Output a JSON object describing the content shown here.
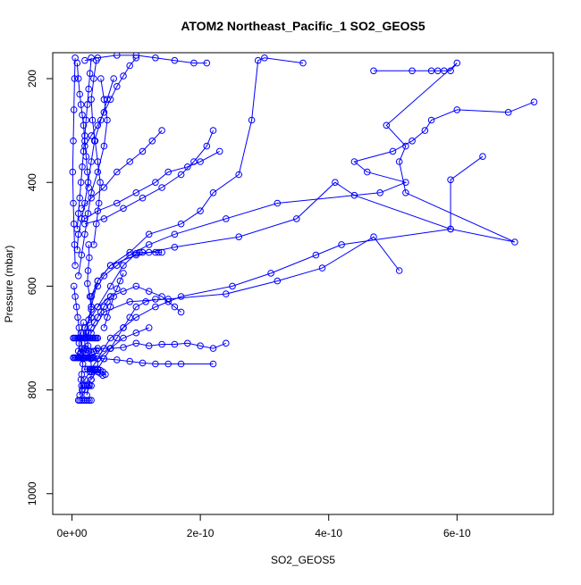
{
  "chart_data": {
    "type": "scatter",
    "title": "ATOM2 Northeast_Pacific_1 SO2_GEOS5",
    "xlabel": "SO2_GEOS5",
    "ylabel": "Pressure (mbar)",
    "xlim": [
      -3e-11,
      7.5e-10
    ],
    "ylim": [
      1040,
      150
    ],
    "y_reversed": true,
    "x_ticks": [
      0,
      2e-10,
      4e-10,
      6e-10
    ],
    "x_tick_labels": [
      "0e+00",
      "2e-10",
      "4e-10",
      "6e-10"
    ],
    "y_ticks": [
      200,
      400,
      600,
      800,
      1000
    ],
    "y_tick_labels": [
      "200",
      "400",
      "600",
      "800",
      "1000"
    ],
    "color": "#0000ff",
    "marker": "open-circle",
    "connected_lines": true,
    "series": [
      {
        "x": [
          7.2e-10,
          6.8e-10,
          6e-10,
          5.6e-10,
          5.5e-10,
          5.3e-10,
          5e-10,
          4.4e-10,
          4.6e-10,
          5.2e-10,
          4.8e-10,
          3.2e-10,
          2.4e-10,
          1.6e-10,
          1.2e-10,
          9e-11,
          7e-11,
          5e-11,
          4e-11,
          3e-11,
          3e-11,
          3e-11,
          2e-11,
          2e-11,
          2e-11
        ],
        "y": [
          245,
          265,
          260,
          280,
          300,
          320,
          340,
          360,
          380,
          400,
          420,
          440,
          470,
          500,
          520,
          540,
          560,
          580,
          600,
          620,
          640,
          660,
          680,
          700,
          720
        ]
      },
      {
        "x": [
          4.7e-10,
          5.3e-10,
          5.6e-10,
          5.7e-10,
          5.8e-10,
          5.9e-10,
          6e-10,
          4.9e-10,
          5.2e-10,
          5.1e-10,
          5.2e-10,
          6.9e-10,
          5.9e-10,
          4.2e-10,
          3.8e-10,
          3.1e-10,
          2.5e-10,
          1.7e-10,
          1.3e-10,
          1e-10,
          8e-11,
          6e-11,
          5e-11,
          4e-11,
          4e-11,
          3e-11
        ],
        "y": [
          185,
          185,
          185,
          185,
          185,
          185,
          170,
          290,
          330,
          360,
          420,
          515,
          490,
          520,
          540,
          575,
          600,
          620,
          640,
          660,
          680,
          700,
          720,
          740,
          760,
          780
        ]
      },
      {
        "x": [
          6.4e-10,
          5.9e-10,
          5.9e-10,
          4.4e-10,
          4.1e-10,
          3.5e-10,
          2.6e-10,
          1.6e-10,
          1e-10,
          6e-11,
          4e-11,
          3e-11,
          2e-11
        ],
        "y": [
          350,
          395,
          490,
          425,
          400,
          470,
          505,
          525,
          540,
          560,
          590,
          640,
          700
        ]
      },
      {
        "x": [
          3.6e-10,
          3e-10,
          2.9e-10,
          2.8e-10,
          2.6e-10,
          2.2e-10,
          2e-10,
          1.7e-10,
          1.2e-10,
          9e-11,
          6e-11,
          4e-11,
          3e-11
        ],
        "y": [
          170,
          160,
          165,
          280,
          385,
          420,
          455,
          480,
          500,
          535,
          560,
          590,
          620
        ]
      },
      {
        "x": [
          5.1e-10,
          4.7e-10,
          3.9e-10,
          3.2e-10,
          2.4e-10,
          1.5e-10,
          9e-11,
          5e-11,
          3e-11
        ],
        "y": [
          570,
          505,
          565,
          590,
          615,
          625,
          630,
          650,
          690
        ]
      },
      {
        "x": [
          2.1e-10,
          1.9e-10,
          1.6e-10,
          1.3e-10,
          1e-10,
          7e-11,
          4e-11,
          2e-11
        ],
        "y": [
          170,
          170,
          165,
          160,
          155,
          155,
          160,
          165
        ]
      },
      {
        "x": [
          2.2e-10,
          2.1e-10,
          1.9e-10,
          1.7e-10,
          1.4e-10,
          1.1e-10,
          8e-11,
          5e-11,
          2e-11
        ],
        "y": [
          300,
          330,
          360,
          385,
          410,
          430,
          450,
          470,
          480
        ]
      },
      {
        "x": [
          2.3e-10,
          2e-10,
          1.8e-10,
          1.5e-10,
          1.3e-10,
          1e-10,
          7e-11,
          4e-11,
          2e-11
        ],
        "y": [
          340,
          360,
          370,
          380,
          400,
          420,
          440,
          455,
          470
        ]
      },
      {
        "x": [
          2.4e-10,
          2.2e-10,
          2e-10,
          1.8e-10,
          1.6e-10,
          1.4e-10,
          1.2e-10,
          1e-10,
          8e-11,
          6e-11,
          4e-11,
          2e-11
        ],
        "y": [
          710,
          720,
          715,
          710,
          712,
          712,
          715,
          710,
          718,
          720,
          720,
          720
        ]
      },
      {
        "x": [
          2.2e-10,
          1.7e-10,
          1.5e-10,
          1.3e-10,
          1.1e-10,
          9e-11,
          7e-11,
          5e-11,
          3e-11,
          1e-11
        ],
        "y": [
          750,
          750,
          750,
          750,
          748,
          745,
          742,
          740,
          738,
          738
        ]
      },
      {
        "x": [
          1.4e-10,
          1.35e-10,
          1.3e-10,
          1.2e-10,
          1.1e-10,
          1.05e-10,
          1e-10,
          8e-11,
          6e-11,
          4e-11,
          2e-11
        ],
        "y": [
          535,
          535,
          535,
          535,
          535,
          535,
          537,
          560,
          600,
          640,
          680
        ]
      },
      {
        "x": [
          1.3e-10,
          1.15e-10,
          1e-10,
          9e-11,
          8e-11,
          7e-11,
          6e-11,
          5e-11,
          4e-11,
          3e-11
        ],
        "y": [
          625,
          630,
          640,
          660,
          680,
          700,
          720,
          740,
          760,
          780
        ]
      },
      {
        "x": [
          1.7e-10,
          1.6e-10,
          1.5e-10,
          1.4e-10,
          1.2e-10,
          1e-10,
          8e-11,
          6e-11,
          4e-11
        ],
        "y": [
          650,
          640,
          630,
          620,
          610,
          600,
          610,
          620,
          640
        ]
      },
      {
        "x": [
          1.2e-10,
          1e-10,
          8e-11,
          6e-11,
          4e-11,
          3e-11,
          2e-11,
          2e-11,
          1e-11
        ],
        "y": [
          680,
          690,
          700,
          720,
          740,
          760,
          780,
          800,
          820
        ]
      },
      {
        "x": [
          1.4e-10,
          1.25e-10,
          1.1e-10,
          9e-11,
          7e-11,
          5e-11,
          3e-11,
          1.5e-11
        ],
        "y": [
          300,
          320,
          340,
          360,
          380,
          410,
          430,
          450
        ]
      },
      {
        "x": [
          1e-10,
          9e-11,
          8e-11,
          7e-11,
          6e-11,
          5e-11,
          4e-11,
          3e-11,
          2e-11
        ],
        "y": [
          160,
          175,
          195,
          215,
          240,
          265,
          290,
          310,
          330
        ]
      },
      {
        "x": [
          6.5e-11,
          5.5e-11,
          4.5e-11,
          3.5e-11,
          3e-11,
          2.5e-11,
          2e-11,
          1.5e-11,
          1e-11,
          8e-12
        ],
        "y": [
          200,
          240,
          280,
          320,
          360,
          400,
          440,
          470,
          500,
          530
        ]
      },
      {
        "x": [
          4.5e-11,
          5e-11,
          5.5e-11,
          5e-11,
          4e-11,
          3e-11,
          2.5e-11,
          2e-11,
          1.5e-11,
          1e-11
        ],
        "y": [
          200,
          240,
          280,
          330,
          380,
          420,
          460,
          500,
          540,
          580
        ]
      },
      {
        "x": [
          3e-11,
          2.8e-11,
          2.6e-11,
          2.4e-11,
          2.2e-11,
          2e-11,
          1.8e-11,
          1.6e-11,
          1.4e-11,
          1.2e-11,
          1e-11,
          8e-12
        ],
        "y": [
          160,
          190,
          220,
          250,
          280,
          310,
          340,
          370,
          400,
          430,
          460,
          490
        ]
      },
      {
        "x": [
          2.6e-11,
          2.7e-11,
          2.5e-11,
          2.4e-11,
          2.8e-11,
          3e-11,
          2.6e-11,
          2.2e-11,
          2.5e-11,
          2.9e-11,
          3.1e-11,
          2.7e-11,
          2.3e-11
        ],
        "y": [
          520,
          545,
          570,
          595,
          620,
          645,
          665,
          690,
          715,
          740,
          765,
          790,
          810
        ]
      },
      {
        "x": [
          5e-12,
          4e-12,
          3e-12,
          2e-12,
          1e-12,
          2e-12,
          3e-12,
          4e-12,
          5e-12
        ],
        "y": [
          160,
          200,
          260,
          320,
          380,
          440,
          480,
          520,
          560
        ]
      },
      {
        "x": [
          3e-12,
          5e-12,
          7e-12,
          9e-12,
          1.1e-11,
          1.3e-11,
          1.5e-11,
          1.7e-11
        ],
        "y": [
          600,
          620,
          640,
          660,
          680,
          700,
          720,
          740
        ]
      },
      {
        "x": [
          2e-12,
          4e-12,
          6e-12,
          8e-12,
          1e-11,
          1.2e-11,
          1.4e-11,
          1.6e-11,
          1.8e-11,
          2e-11,
          2.2e-11,
          2.4e-11,
          2.6e-11,
          2.8e-11,
          3e-11,
          3.2e-11,
          3.4e-11,
          3.6e-11,
          3.8e-11,
          4e-11
        ],
        "y": [
          700,
          700,
          700,
          700,
          700,
          700,
          700,
          700,
          700,
          700,
          700,
          700,
          700,
          700,
          700,
          700,
          700,
          700,
          700,
          700
        ]
      },
      {
        "x": [
          2e-12,
          4e-12,
          6e-12,
          8e-12,
          1e-11,
          1.2e-11,
          1.4e-11,
          1.6e-11,
          1.8e-11,
          2e-11,
          2.2e-11,
          2.4e-11,
          2.6e-11,
          2.8e-11,
          3e-11,
          3.2e-11,
          3.4e-11
        ],
        "y": [
          738,
          738,
          738,
          738,
          738,
          738,
          738,
          738,
          738,
          738,
          738,
          738,
          738,
          738,
          738,
          738,
          738
        ]
      },
      {
        "x": [
          2e-11,
          2.4e-11,
          2.8e-11,
          3.2e-11,
          3.6e-11,
          4e-11,
          4.4e-11,
          4.8e-11,
          5.2e-11,
          4.8e-11,
          4.4e-11,
          4e-11,
          3.6e-11,
          3.2e-11,
          2.8e-11
        ],
        "y": [
          760,
          760,
          760,
          760,
          760,
          760,
          762,
          765,
          770,
          772,
          768,
          765,
          762,
          762,
          765
        ]
      },
      {
        "x": [
          1.5e-11,
          1.8e-11,
          2.1e-11,
          2.4e-11,
          2.7e-11,
          3e-11
        ],
        "y": [
          792,
          792,
          792,
          792,
          792,
          792
        ]
      },
      {
        "x": [
          1.2e-11,
          1.5e-11,
          1.8e-11,
          2.1e-11,
          2.4e-11,
          2.7e-11,
          3e-11
        ],
        "y": [
          820,
          820,
          820,
          820,
          820,
          820,
          820
        ]
      },
      {
        "x": [
          1e-11,
          1.4e-11,
          1.8e-11,
          2.2e-11,
          2.6e-11,
          3e-11,
          3.4e-11,
          3.8e-11,
          4.2e-11
        ],
        "y": [
          725,
          727,
          725,
          722,
          725,
          728,
          726,
          724,
          725
        ]
      },
      {
        "x": [
          1.4e-11,
          1.6e-11,
          1.2e-11,
          1.5e-11,
          1.7e-11,
          1.3e-11,
          1.1e-11,
          1.4e-11,
          1.8e-11
        ],
        "y": [
          780,
          800,
          810,
          770,
          750,
          730,
          710,
          690,
          670
        ]
      },
      {
        "x": [
          8e-12,
          1e-11,
          1.2e-11,
          1.4e-11,
          1.6e-11,
          1.8e-11,
          2e-11,
          2.2e-11,
          2.4e-11,
          2.6e-11
        ],
        "y": [
          170,
          200,
          230,
          250,
          270,
          290,
          320,
          350,
          380,
          410
        ]
      },
      {
        "x": [
          3.8e-11,
          3.4e-11,
          3e-11,
          3.2e-11,
          3.6e-11,
          4e-11,
          4.4e-11,
          4.2e-11,
          3.8e-11,
          3.4e-11
        ],
        "y": [
          165,
          200,
          240,
          280,
          320,
          360,
          400,
          440,
          480,
          520
        ]
      },
      {
        "x": [
          6e-11,
          5.5e-11,
          5e-11,
          4.5e-11,
          4e-11,
          3.5e-11,
          3e-11,
          2.5e-11,
          2e-11
        ],
        "y": [
          620,
          630,
          640,
          650,
          660,
          670,
          680,
          690,
          700
        ]
      },
      {
        "x": [
          8e-11,
          7.5e-11,
          7e-11,
          6.5e-11,
          6e-11,
          5.5e-11,
          5e-11
        ],
        "y": [
          575,
          590,
          605,
          620,
          640,
          660,
          680
        ]
      }
    ]
  }
}
